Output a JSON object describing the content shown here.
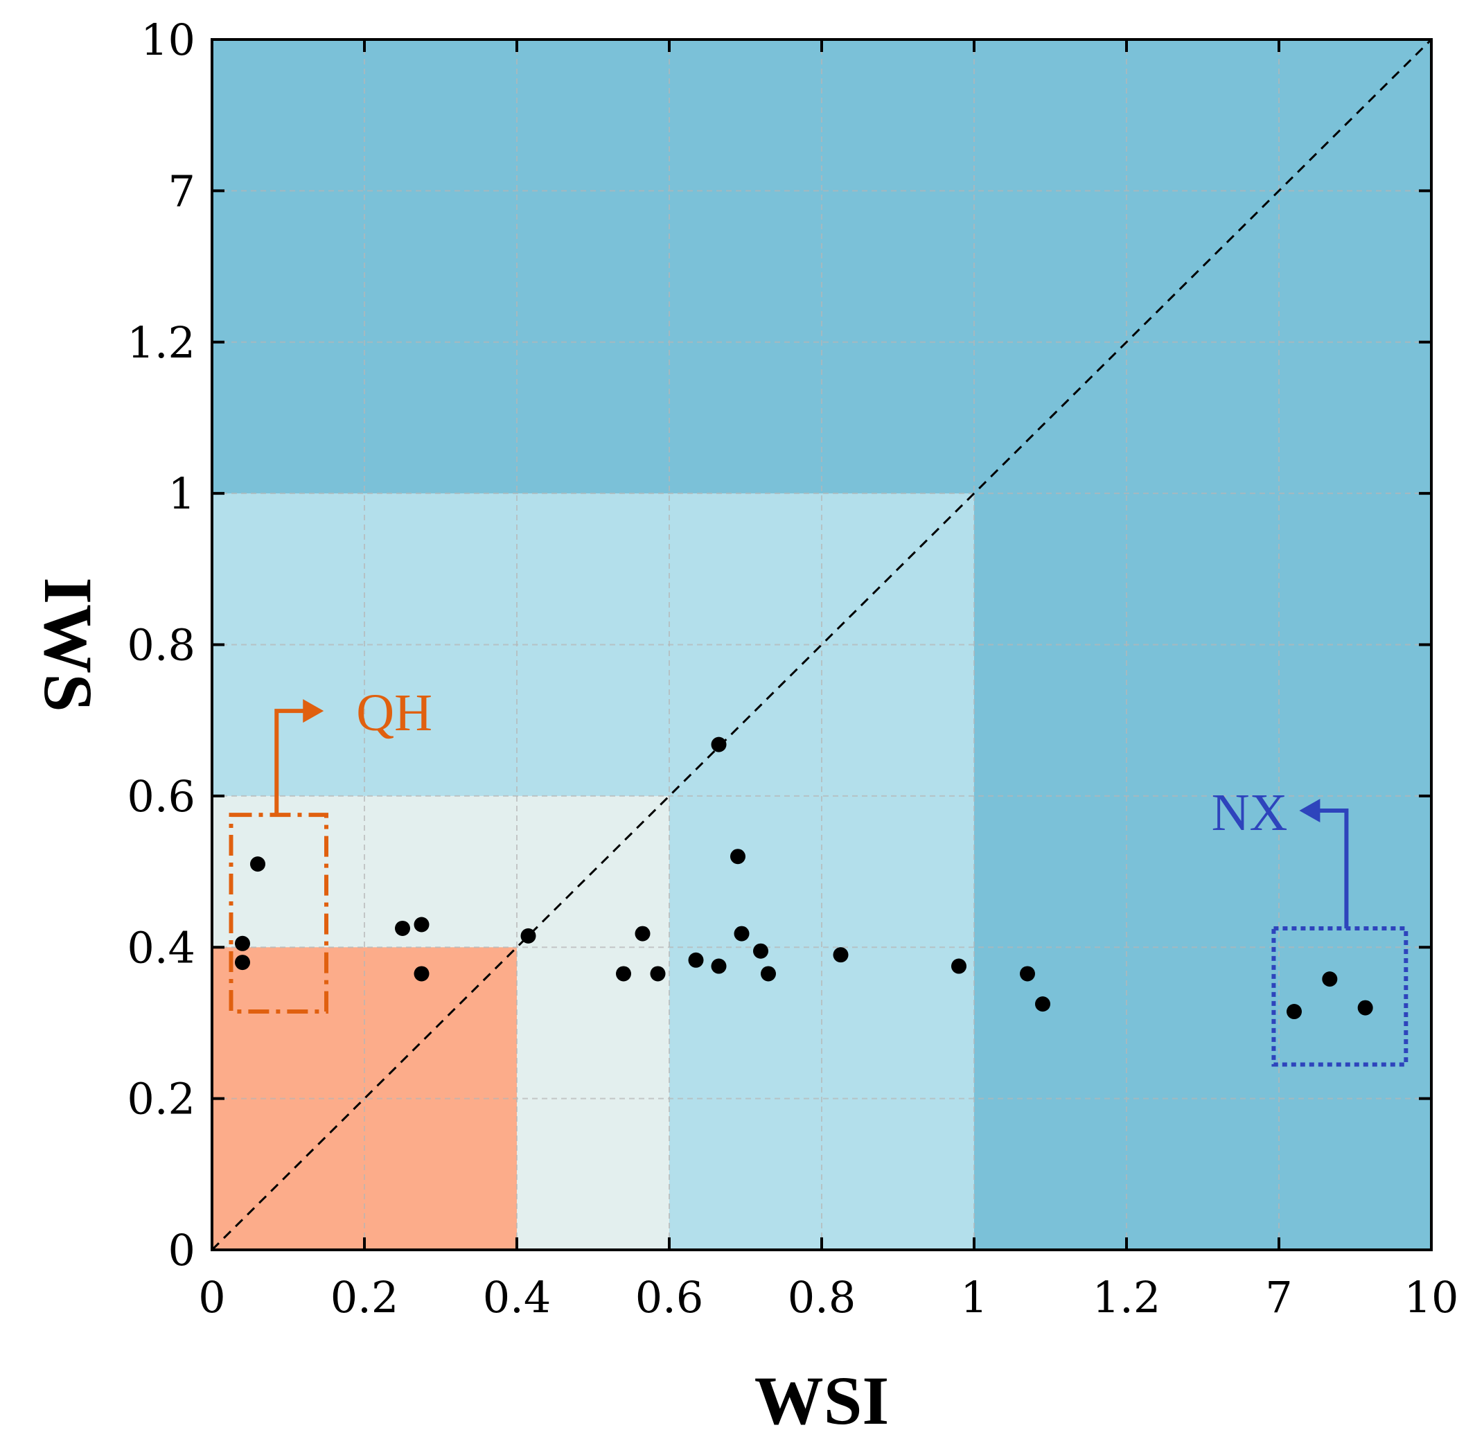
{
  "chart_data": {
    "type": "scatter",
    "title": "",
    "xlabel": "WSI",
    "ylabel": "IWS",
    "axis_note": "piecewise categorical tick scale on both axes",
    "x_ticks": [
      "0",
      "0.2",
      "0.4",
      "0.6",
      "0.8",
      "1",
      "1.2",
      "7",
      "10"
    ],
    "y_ticks": [
      "0",
      "0.2",
      "0.4",
      "0.6",
      "0.8",
      "1",
      "1.2",
      "7",
      "10"
    ],
    "grid": true,
    "regions": [
      {
        "name": "outer-dark",
        "x": [
          0,
          10
        ],
        "y": [
          0,
          10
        ],
        "color": "#7BC1D8"
      },
      {
        "name": "mid-light-blue",
        "x": [
          0,
          1
        ],
        "y": [
          0,
          1
        ],
        "color": "#B3DFEB"
      },
      {
        "name": "inner-pale",
        "x": [
          0,
          0.6
        ],
        "y": [
          0,
          0.6
        ],
        "color": "#E3EFEE"
      },
      {
        "name": "core-orange",
        "x": [
          0,
          0.4
        ],
        "y": [
          0,
          0.4
        ],
        "color": "#FCAC8A"
      }
    ],
    "reference_line": {
      "style": "dashed",
      "from": [
        0,
        0
      ],
      "to": [
        10,
        10
      ]
    },
    "points": [
      {
        "x": 0.04,
        "y": 0.405
      },
      {
        "x": 0.04,
        "y": 0.38
      },
      {
        "x": 0.06,
        "y": 0.51
      },
      {
        "x": 0.25,
        "y": 0.425
      },
      {
        "x": 0.275,
        "y": 0.43
      },
      {
        "x": 0.275,
        "y": 0.365
      },
      {
        "x": 0.415,
        "y": 0.415
      },
      {
        "x": 0.54,
        "y": 0.365
      },
      {
        "x": 0.565,
        "y": 0.418
      },
      {
        "x": 0.585,
        "y": 0.365
      },
      {
        "x": 0.635,
        "y": 0.383
      },
      {
        "x": 0.665,
        "y": 0.668
      },
      {
        "x": 0.665,
        "y": 0.375
      },
      {
        "x": 0.69,
        "y": 0.52
      },
      {
        "x": 0.695,
        "y": 0.418
      },
      {
        "x": 0.72,
        "y": 0.395
      },
      {
        "x": 0.73,
        "y": 0.365
      },
      {
        "x": 0.825,
        "y": 0.39
      },
      {
        "x": 0.98,
        "y": 0.375
      },
      {
        "x": 1.07,
        "y": 0.365
      },
      {
        "x": 1.09,
        "y": 0.325
      },
      {
        "x": 7.3,
        "y": 0.315
      },
      {
        "x": 8.0,
        "y": 0.358
      },
      {
        "x": 8.7,
        "y": 0.32
      }
    ],
    "annotations": [
      {
        "label": "QH",
        "color": "#E0600F",
        "box": {
          "x": [
            0.025,
            0.15
          ],
          "y": [
            0.315,
            0.575
          ]
        },
        "box_style": "dash-dot"
      },
      {
        "label": "NX",
        "color": "#2E44BC",
        "box": {
          "x": [
            6.8,
            9.5
          ],
          "y": [
            0.245,
            0.425
          ]
        },
        "box_style": "dotted"
      }
    ]
  }
}
